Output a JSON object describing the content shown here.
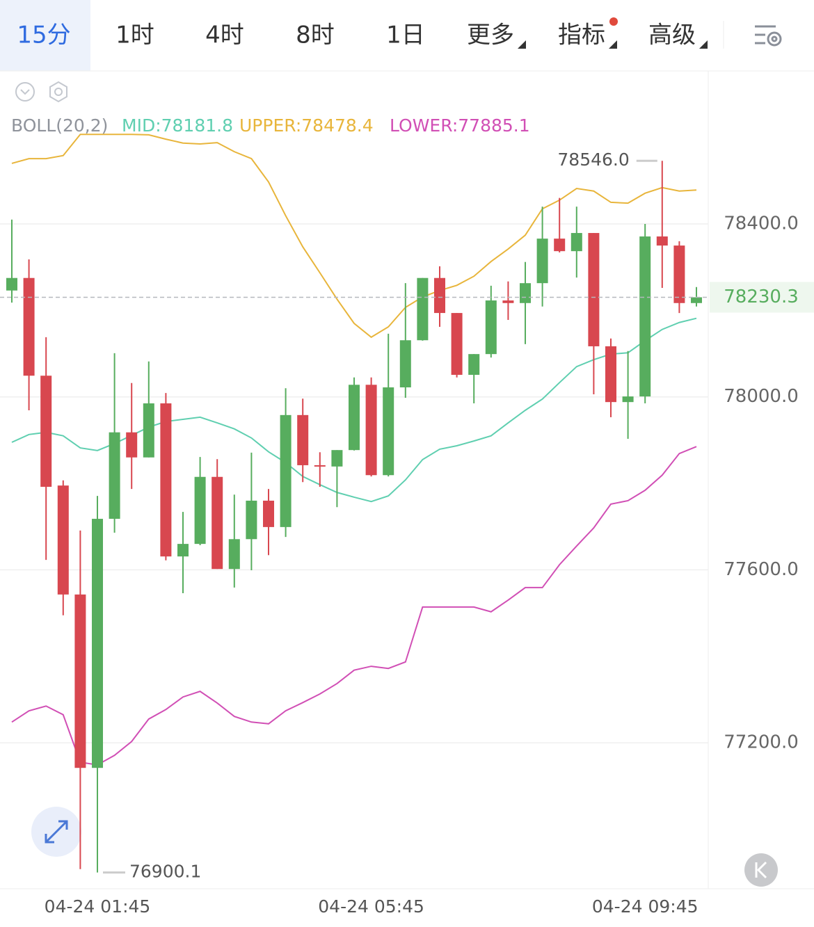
{
  "tabs": [
    "15分",
    "1时",
    "4时",
    "8时",
    "1日",
    "更多",
    "指标",
    "高级"
  ],
  "chart_data": {
    "type": "candlestick",
    "indicator": "BOLL(20,2)",
    "categories": [
      null,
      null,
      null,
      null,
      null,
      "04-24 01:45",
      null,
      null,
      null,
      null,
      null,
      null,
      null,
      null,
      null,
      null,
      null,
      null,
      null,
      null,
      null,
      "04-24 05:45",
      null,
      null,
      null,
      null,
      null,
      null,
      null,
      null,
      null,
      null,
      null,
      null,
      null,
      null,
      null,
      "04-24 09:45",
      null,
      null,
      null
    ],
    "open": [
      78246,
      78275,
      78049,
      77795,
      77543,
      77142,
      77718,
      77918,
      77860,
      77985,
      77631,
      77660,
      77815,
      77602,
      77671,
      77760,
      77699,
      77958,
      77842,
      77839,
      77877,
      78028,
      77819,
      78022,
      78131,
      78275,
      78194,
      78051,
      78099,
      78223,
      78217,
      78263,
      78366,
      78337,
      78379,
      78117,
      77988,
      78001,
      78371,
      78350,
      78217
    ],
    "high": [
      78410,
      78318,
      78138,
      77807,
      77691,
      77771,
      78101,
      78032,
      78082,
      78009,
      77734,
      77861,
      77856,
      77774,
      77871,
      77787,
      78020,
      77996,
      77872,
      77877,
      78045,
      78045,
      78146,
      78263,
      78275,
      78302,
      78194,
      78099,
      78257,
      78267,
      78312,
      78440,
      78460,
      78440,
      78379,
      78135,
      78106,
      78400,
      78546.0,
      78360,
      78254
    ],
    "low": [
      78218,
      77969,
      77623,
      77495,
      76908,
      76900.1,
      77686,
      77787,
      77860,
      77622,
      77546,
      77657,
      77602,
      77559,
      77599,
      77634,
      77676,
      77803,
      77792,
      77745,
      77876,
      77816,
      77816,
      77998,
      78130,
      78162,
      78045,
      77985,
      78091,
      78178,
      78122,
      78209,
      78334,
      78276,
      78006,
      77953,
      77903,
      77985,
      78252,
      78194,
      78209
    ],
    "close": [
      78275,
      78049,
      77792,
      77543,
      77142,
      77718,
      77918,
      77860,
      77985,
      77631,
      77660,
      77815,
      77602,
      77671,
      77760,
      77699,
      77958,
      77842,
      77839,
      77877,
      78028,
      77819,
      78022,
      78131,
      78275,
      78194,
      78051,
      78099,
      78223,
      78217,
      78263,
      78366,
      78337,
      78379,
      78117,
      77988,
      78001,
      78371,
      78350,
      78217,
      78230.3
    ],
    "up_color": "#57ad5e",
    "down_color": "#d8474f",
    "series": [
      {
        "name": "MID:78181.8",
        "color": "#5fcfb0",
        "values": [
          77895,
          77913,
          77918,
          77910,
          77882,
          77876,
          77892,
          77911,
          77930,
          77943,
          77948,
          77953,
          77940,
          77926,
          77905,
          77873,
          77848,
          77816,
          77797,
          77779,
          77768,
          77758,
          77771,
          77808,
          77855,
          77879,
          77887,
          77898,
          77910,
          77940,
          77969,
          77995,
          78033,
          78070,
          78086,
          78099,
          78102,
          78130,
          78156,
          78172,
          78181.8
        ]
      },
      {
        "name": "UPPER:78478.4",
        "color": "#e8b53b",
        "values": [
          78540,
          78551,
          78551,
          78558,
          78607,
          78607,
          78607,
          78607,
          78606,
          78596,
          78587,
          78585,
          78588,
          78567,
          78551,
          78497,
          78419,
          78347,
          78287,
          78226,
          78170,
          78138,
          78162,
          78207,
          78231,
          78246,
          78258,
          78279,
          78313,
          78342,
          78374,
          78435,
          78455,
          78482,
          78476,
          78450,
          78448,
          78471,
          78484,
          78476,
          78478.4
        ]
      },
      {
        "name": "LOWER:77885.1",
        "color": "#d14fb5",
        "values": [
          77248,
          77274,
          77285,
          77265,
          77155,
          77149,
          77171,
          77203,
          77255,
          77277,
          77306,
          77319,
          77292,
          77261,
          77248,
          77244,
          77274,
          77293,
          77313,
          77337,
          77368,
          77377,
          77372,
          77387,
          77514,
          77514,
          77514,
          77514,
          77503,
          77530,
          77559,
          77559,
          77612,
          77655,
          77697,
          77752,
          77760,
          77784,
          77819,
          77869,
          77885.1
        ]
      }
    ],
    "ylim": [
      76862.5,
      78753.8
    ],
    "yticks": [
      {
        "value": 78400,
        "label": "78400.0"
      },
      {
        "value": 78000,
        "label": "78000.0"
      },
      {
        "value": 77600,
        "label": "77600.0"
      },
      {
        "value": 77200,
        "label": "77200.0"
      }
    ],
    "grid": true,
    "last_price": {
      "value": 78230.3,
      "label": "78230.3"
    },
    "max_label": "78546.0",
    "min_label": "76900.1"
  }
}
